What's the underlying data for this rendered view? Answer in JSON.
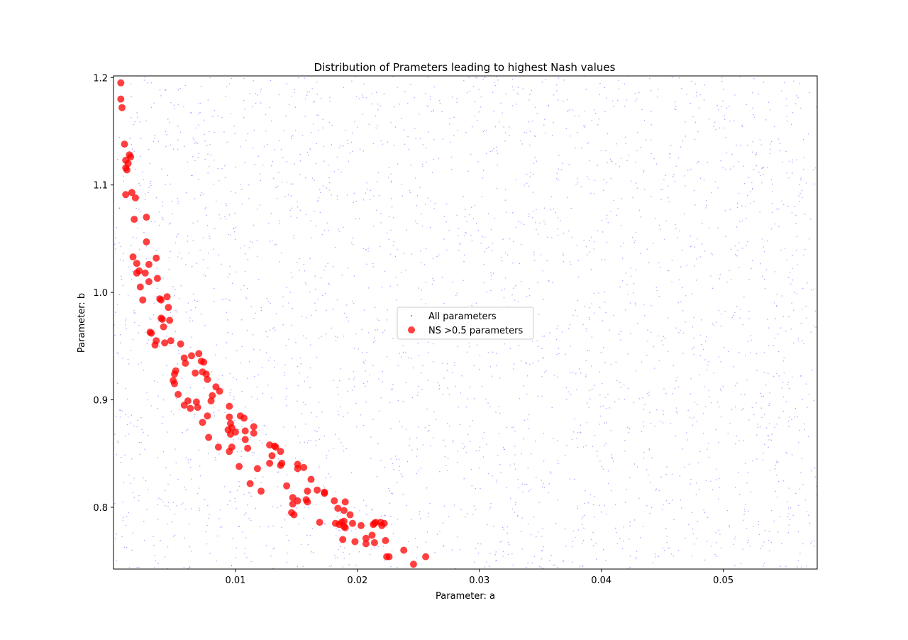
{
  "chart_data": {
    "type": "scatter",
    "title": "Distribution of Prameters leading to highest Nash values",
    "xlabel": "Parameter: a",
    "ylabel": "Parameter: b",
    "xlim": [
      0.0,
      0.0577
    ],
    "ylim": [
      0.7425,
      1.2015
    ],
    "xticks": [
      {
        "value": 0.01,
        "label": "0.01"
      },
      {
        "value": 0.02,
        "label": "0.02"
      },
      {
        "value": 0.03,
        "label": "0.03"
      },
      {
        "value": 0.04,
        "label": "0.04"
      },
      {
        "value": 0.05,
        "label": "0.05"
      }
    ],
    "yticks": [
      {
        "value": 0.8,
        "label": "0.8"
      },
      {
        "value": 0.9,
        "label": "0.9"
      },
      {
        "value": 1.0,
        "label": "1.0"
      },
      {
        "value": 1.1,
        "label": "1.1"
      },
      {
        "value": 1.2,
        "label": "1.2"
      }
    ],
    "grid": false,
    "legend": {
      "placement": "center",
      "entries": [
        {
          "label": "All parameters",
          "color": "#0000ff",
          "marker": "small-dot"
        },
        {
          "label": "NS >0.5 parameters",
          "color": "#ff0000",
          "marker": "circle"
        }
      ]
    },
    "series": [
      {
        "name": "All parameters",
        "color": "#0000ff",
        "count_approx": 3000,
        "distribution": "uniform",
        "x_range": [
          0.0,
          0.0577
        ],
        "y_range": [
          0.7425,
          1.2015
        ]
      },
      {
        "name": "NS >0.5 parameters",
        "color": "#ff0000",
        "alpha": 0.75,
        "points": [
          [
            0.0006,
            1.195
          ],
          [
            0.0006,
            1.18
          ],
          [
            0.0007,
            1.172
          ],
          [
            0.0009,
            1.138
          ],
          [
            0.001,
            1.123
          ],
          [
            0.0012,
            1.12
          ],
          [
            0.001,
            1.116
          ],
          [
            0.0011,
            1.114
          ],
          [
            0.0013,
            1.128
          ],
          [
            0.0014,
            1.126
          ],
          [
            0.001,
            1.091
          ],
          [
            0.0015,
            1.093
          ],
          [
            0.0018,
            1.088
          ],
          [
            0.0017,
            1.068
          ],
          [
            0.0027,
            1.07
          ],
          [
            0.0027,
            1.047
          ],
          [
            0.0016,
            1.033
          ],
          [
            0.0019,
            1.027
          ],
          [
            0.0019,
            1.018
          ],
          [
            0.0021,
            1.02
          ],
          [
            0.0026,
            1.018
          ],
          [
            0.0029,
            1.026
          ],
          [
            0.0035,
            1.032
          ],
          [
            0.0022,
            1.005
          ],
          [
            0.0029,
            1.01
          ],
          [
            0.0036,
            1.013
          ],
          [
            0.0024,
            0.993
          ],
          [
            0.0038,
            0.994
          ],
          [
            0.0039,
            0.993
          ],
          [
            0.0044,
            0.996
          ],
          [
            0.0045,
            0.986
          ],
          [
            0.003,
            0.963
          ],
          [
            0.0031,
            0.962
          ],
          [
            0.0039,
            0.976
          ],
          [
            0.004,
            0.975
          ],
          [
            0.0046,
            0.974
          ],
          [
            0.0041,
            0.968
          ],
          [
            0.0035,
            0.955
          ],
          [
            0.0034,
            0.951
          ],
          [
            0.0042,
            0.953
          ],
          [
            0.0047,
            0.955
          ],
          [
            0.0055,
            0.952
          ],
          [
            0.0058,
            0.939
          ],
          [
            0.0064,
            0.941
          ],
          [
            0.007,
            0.943
          ],
          [
            0.0059,
            0.934
          ],
          [
            0.0072,
            0.936
          ],
          [
            0.0074,
            0.935
          ],
          [
            0.0067,
            0.925
          ],
          [
            0.0073,
            0.926
          ],
          [
            0.0076,
            0.924
          ],
          [
            0.005,
            0.924
          ],
          [
            0.0051,
            0.927
          ],
          [
            0.0049,
            0.918
          ],
          [
            0.005,
            0.915
          ],
          [
            0.0077,
            0.919
          ],
          [
            0.0084,
            0.912
          ],
          [
            0.0087,
            0.908
          ],
          [
            0.0053,
            0.905
          ],
          [
            0.0081,
            0.904
          ],
          [
            0.008,
            0.899
          ],
          [
            0.0061,
            0.899
          ],
          [
            0.0068,
            0.898
          ],
          [
            0.0058,
            0.895
          ],
          [
            0.0063,
            0.892
          ],
          [
            0.0069,
            0.893
          ],
          [
            0.0095,
            0.894
          ],
          [
            0.0073,
            0.879
          ],
          [
            0.0077,
            0.885
          ],
          [
            0.0095,
            0.884
          ],
          [
            0.0104,
            0.885
          ],
          [
            0.0107,
            0.883
          ],
          [
            0.0096,
            0.878
          ],
          [
            0.0097,
            0.874
          ],
          [
            0.0094,
            0.872
          ],
          [
            0.01,
            0.87
          ],
          [
            0.0096,
            0.868
          ],
          [
            0.0108,
            0.871
          ],
          [
            0.0115,
            0.875
          ],
          [
            0.0115,
            0.869
          ],
          [
            0.0078,
            0.865
          ],
          [
            0.0108,
            0.863
          ],
          [
            0.0086,
            0.856
          ],
          [
            0.0097,
            0.856
          ],
          [
            0.0095,
            0.852
          ],
          [
            0.011,
            0.855
          ],
          [
            0.0128,
            0.858
          ],
          [
            0.0132,
            0.857
          ],
          [
            0.0133,
            0.856
          ],
          [
            0.0137,
            0.852
          ],
          [
            0.013,
            0.848
          ],
          [
            0.0103,
            0.838
          ],
          [
            0.0118,
            0.836
          ],
          [
            0.0128,
            0.841
          ],
          [
            0.0137,
            0.839
          ],
          [
            0.0138,
            0.841
          ],
          [
            0.0151,
            0.84
          ],
          [
            0.0151,
            0.836
          ],
          [
            0.0156,
            0.837
          ],
          [
            0.0112,
            0.822
          ],
          [
            0.0142,
            0.82
          ],
          [
            0.0162,
            0.826
          ],
          [
            0.0121,
            0.815
          ],
          [
            0.0159,
            0.815
          ],
          [
            0.0167,
            0.816
          ],
          [
            0.0173,
            0.813
          ],
          [
            0.0173,
            0.814
          ],
          [
            0.0147,
            0.809
          ],
          [
            0.0151,
            0.806
          ],
          [
            0.0158,
            0.807
          ],
          [
            0.0159,
            0.805
          ],
          [
            0.0147,
            0.803
          ],
          [
            0.0146,
            0.795
          ],
          [
            0.0148,
            0.793
          ],
          [
            0.0181,
            0.806
          ],
          [
            0.019,
            0.805
          ],
          [
            0.0184,
            0.799
          ],
          [
            0.0189,
            0.797
          ],
          [
            0.0194,
            0.793
          ],
          [
            0.0169,
            0.786
          ],
          [
            0.0182,
            0.785
          ],
          [
            0.0185,
            0.784
          ],
          [
            0.0187,
            0.786
          ],
          [
            0.0189,
            0.787
          ],
          [
            0.0189,
            0.782
          ],
          [
            0.019,
            0.781
          ],
          [
            0.0196,
            0.785
          ],
          [
            0.0203,
            0.783
          ],
          [
            0.0214,
            0.785
          ],
          [
            0.0215,
            0.786
          ],
          [
            0.0219,
            0.786
          ],
          [
            0.022,
            0.783
          ],
          [
            0.0222,
            0.785
          ],
          [
            0.0213,
            0.784
          ],
          [
            0.0188,
            0.77
          ],
          [
            0.0198,
            0.768
          ],
          [
            0.0207,
            0.771
          ],
          [
            0.0212,
            0.774
          ],
          [
            0.0207,
            0.766
          ],
          [
            0.0214,
            0.767
          ],
          [
            0.0223,
            0.769
          ],
          [
            0.0224,
            0.754
          ],
          [
            0.0226,
            0.754
          ],
          [
            0.0238,
            0.76
          ],
          [
            0.0256,
            0.754
          ],
          [
            0.0246,
            0.747
          ]
        ]
      }
    ]
  }
}
